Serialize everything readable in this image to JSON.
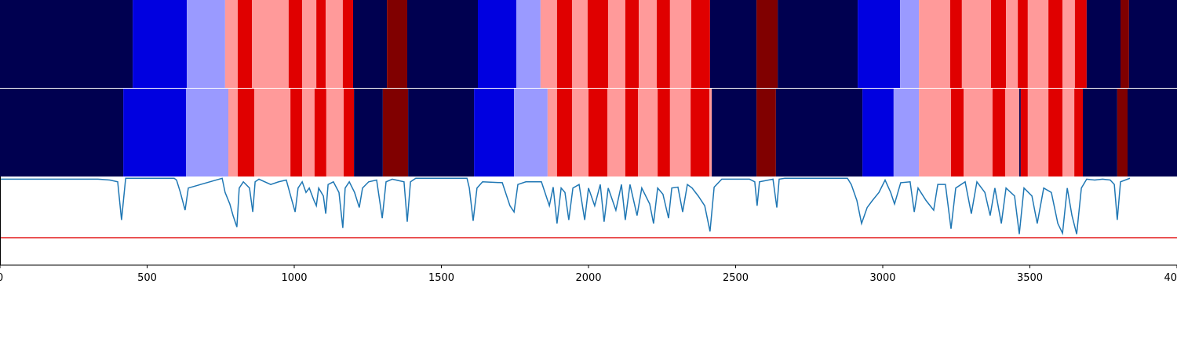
{
  "chart_data": {
    "type": "segments",
    "xlim": [
      0,
      4000
    ],
    "xticks": [
      0,
      500,
      1000,
      1500,
      2000,
      2500,
      3000,
      3500,
      4000
    ],
    "tracks": [
      {
        "bounds": [
          0,
          451,
          635,
          765,
          808,
          856,
          981,
          1027,
          1075,
          1107,
          1165,
          1200,
          1315,
          1384,
          1624,
          1755,
          1837,
          1893,
          1944,
          1997,
          2067,
          2125,
          2171,
          2232,
          2277,
          2349,
          2413,
          2571,
          2643,
          2915,
          3059,
          3123,
          3229,
          3269,
          3368,
          3419,
          3459,
          3493,
          3563,
          3611,
          3653,
          3693,
          3808,
          3837,
          4000
        ],
        "colors": [
          "#000050",
          "#0000e0",
          "#9a9aff",
          "#ff9a9a",
          "#e00000",
          "#ff9a9a",
          "#e00000",
          "#ff9a9a",
          "#e00000",
          "#ff9a9a",
          "#e00000",
          "#000050",
          "#800000",
          "#000050",
          "#0000e0",
          "#9a9aff",
          "#ff9a9a",
          "#e00000",
          "#ff9a9a",
          "#e00000",
          "#ff9a9a",
          "#e00000",
          "#ff9a9a",
          "#e00000",
          "#ff9a9a",
          "#e00000",
          "#000050",
          "#800000",
          "#000050",
          "#0000e0",
          "#9a9aff",
          "#ff9a9a",
          "#e00000",
          "#ff9a9a",
          "#e00000",
          "#ff9a9a",
          "#e00000",
          "#ff9a9a",
          "#e00000",
          "#ff9a9a",
          "#e00000",
          "#000050",
          "#800000",
          "#000050"
        ]
      },
      {
        "bounds": [
          0,
          419,
          632,
          776,
          808,
          864,
          987,
          1027,
          1069,
          1109,
          1168,
          1203,
          1301,
          1387,
          1611,
          1747,
          1861,
          1893,
          1944,
          2000,
          2064,
          2125,
          2168,
          2235,
          2277,
          2347,
          2411,
          2419,
          2571,
          2637,
          2931,
          3037,
          3123,
          3232,
          3275,
          3373,
          3416,
          3464,
          3469,
          3493,
          3563,
          3611,
          3651,
          3680,
          3797,
          3832,
          4000
        ],
        "colors": [
          "#000050",
          "#0000e0",
          "#9a9aff",
          "#ff9a9a",
          "#e00000",
          "#ff9a9a",
          "#e00000",
          "#ff9a9a",
          "#e00000",
          "#ff9a9a",
          "#e00000",
          "#000050",
          "#800000",
          "#000050",
          "#0000e0",
          "#9a9aff",
          "#ff9a9a",
          "#e00000",
          "#ff9a9a",
          "#e00000",
          "#ff9a9a",
          "#e00000",
          "#ff9a9a",
          "#e00000",
          "#ff9a9a",
          "#e00000",
          "#ff9a9a",
          "#000050",
          "#800000",
          "#000050",
          "#0000e0",
          "#9a9aff",
          "#ff9a9a",
          "#e00000",
          "#ff9a9a",
          "#e00000",
          "#ff9a9a",
          "#000050",
          "#e00000",
          "#ff9a9a",
          "#e00000",
          "#ff9a9a",
          "#e00000",
          "#000050",
          "#800000",
          "#000050"
        ]
      }
    ],
    "ylim": [
      0,
      1
    ],
    "threshold": {
      "value": 0.31,
      "color": "#e31a1c"
    },
    "series": [
      {
        "color": "#1f77b4",
        "x": [
          0,
          333,
          373,
          400,
          413,
          427,
          592,
          600,
          613,
          629,
          640,
          755,
          765,
          781,
          792,
          805,
          813,
          827,
          848,
          859,
          867,
          880,
          920,
          947,
          973,
          992,
          1003,
          1013,
          1027,
          1040,
          1051,
          1067,
          1075,
          1083,
          1099,
          1107,
          1115,
          1133,
          1152,
          1165,
          1173,
          1187,
          1205,
          1221,
          1232,
          1253,
          1280,
          1299,
          1312,
          1333,
          1373,
          1384,
          1395,
          1413,
          1587,
          1595,
          1608,
          1621,
          1640,
          1707,
          1733,
          1747,
          1760,
          1787,
          1840,
          1867,
          1880,
          1893,
          1907,
          1920,
          1933,
          1947,
          1968,
          1987,
          2000,
          2021,
          2040,
          2053,
          2067,
          2093,
          2112,
          2125,
          2141,
          2165,
          2181,
          2208,
          2221,
          2235,
          2253,
          2272,
          2283,
          2304,
          2320,
          2336,
          2352,
          2373,
          2395,
          2413,
          2427,
          2453,
          2547,
          2565,
          2573,
          2581,
          2627,
          2640,
          2648,
          2667,
          2880,
          2893,
          2912,
          2928,
          2947,
          2965,
          2987,
          3008,
          3027,
          3040,
          3061,
          3093,
          3107,
          3120,
          3147,
          3173,
          3187,
          3213,
          3232,
          3248,
          3280,
          3301,
          3320,
          3347,
          3365,
          3381,
          3403,
          3419,
          3448,
          3464,
          3480,
          3507,
          3525,
          3547,
          3573,
          3595,
          3611,
          3627,
          3643,
          3659,
          3675,
          3693,
          3720,
          3747,
          3773,
          3787,
          3797,
          3808,
          3840
        ],
        "values": [
          0.97,
          0.97,
          0.96,
          0.94,
          0.51,
          0.98,
          0.98,
          0.96,
          0.82,
          0.62,
          0.87,
          0.98,
          0.82,
          0.69,
          0.56,
          0.43,
          0.87,
          0.94,
          0.87,
          0.6,
          0.94,
          0.97,
          0.91,
          0.94,
          0.96,
          0.73,
          0.6,
          0.87,
          0.94,
          0.82,
          0.87,
          0.73,
          0.67,
          0.87,
          0.78,
          0.58,
          0.91,
          0.94,
          0.82,
          0.42,
          0.87,
          0.94,
          0.82,
          0.65,
          0.87,
          0.94,
          0.96,
          0.53,
          0.94,
          0.97,
          0.94,
          0.49,
          0.94,
          0.98,
          0.98,
          0.87,
          0.5,
          0.87,
          0.94,
          0.93,
          0.67,
          0.6,
          0.91,
          0.94,
          0.94,
          0.67,
          0.88,
          0.47,
          0.87,
          0.82,
          0.51,
          0.87,
          0.91,
          0.51,
          0.87,
          0.67,
          0.91,
          0.49,
          0.87,
          0.62,
          0.91,
          0.51,
          0.91,
          0.56,
          0.87,
          0.69,
          0.47,
          0.87,
          0.8,
          0.53,
          0.87,
          0.88,
          0.6,
          0.91,
          0.87,
          0.78,
          0.67,
          0.38,
          0.88,
          0.97,
          0.97,
          0.94,
          0.67,
          0.94,
          0.97,
          0.65,
          0.97,
          0.98,
          0.98,
          0.91,
          0.73,
          0.47,
          0.65,
          0.73,
          0.82,
          0.96,
          0.82,
          0.69,
          0.93,
          0.94,
          0.6,
          0.87,
          0.73,
          0.62,
          0.91,
          0.91,
          0.41,
          0.87,
          0.94,
          0.58,
          0.94,
          0.82,
          0.56,
          0.87,
          0.47,
          0.87,
          0.78,
          0.35,
          0.87,
          0.78,
          0.47,
          0.87,
          0.82,
          0.47,
          0.36,
          0.87,
          0.56,
          0.35,
          0.87,
          0.97,
          0.96,
          0.97,
          0.96,
          0.91,
          0.51,
          0.94,
          0.98
        ]
      }
    ]
  }
}
